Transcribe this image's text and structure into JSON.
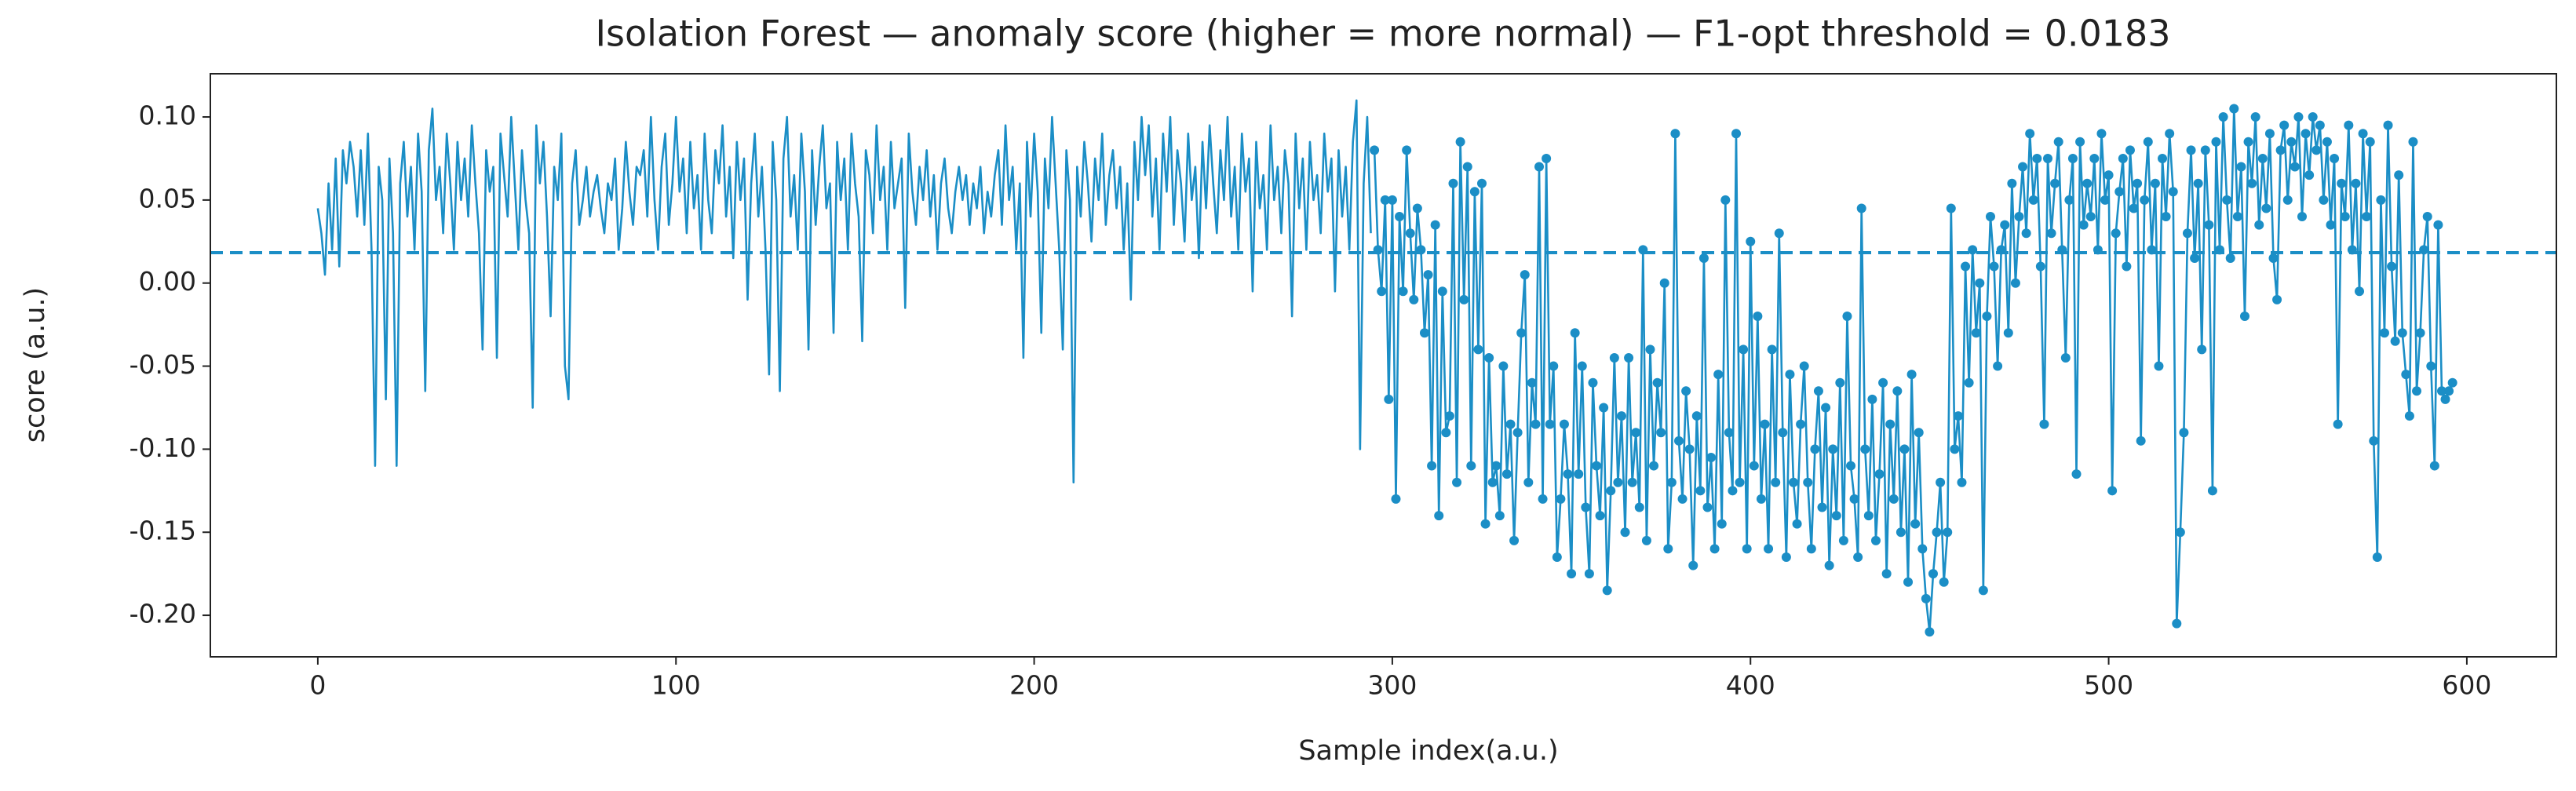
{
  "chart_data": {
    "type": "line",
    "title": "Isolation Forest — anomaly score (higher = more normal) — F1-opt threshold = 0.0183",
    "xlabel": "Sample index(a.u.)",
    "ylabel": "score (a.u.)",
    "threshold": 0.0183,
    "threshold_color": "#1b8ec6",
    "xlim": [
      -30,
      625
    ],
    "xticks": [
      0,
      100,
      200,
      300,
      400,
      500,
      600
    ],
    "ylim": [
      -0.225,
      0.126
    ],
    "yticks": [
      {
        "value": -0.2,
        "label": "-0.20"
      },
      {
        "value": -0.15,
        "label": "-0.15"
      },
      {
        "value": -0.1,
        "label": "-0.10"
      },
      {
        "value": -0.05,
        "label": "-0.05"
      },
      {
        "value": 0,
        "label": "0.00"
      },
      {
        "value": 0.05,
        "label": "0.05"
      },
      {
        "value": 0.1,
        "label": "0.10"
      }
    ],
    "series": [
      {
        "color": "#1b8ec6",
        "marker": false,
        "x": [
          0,
          1,
          2,
          3,
          4,
          5,
          6,
          7,
          8,
          9,
          10,
          11,
          12,
          13,
          14,
          15,
          16,
          17,
          18,
          19,
          20,
          21,
          22,
          23,
          24,
          25,
          26,
          27,
          28,
          29,
          30,
          31,
          32,
          33,
          34,
          35,
          36,
          37,
          38,
          39,
          40,
          41,
          42,
          43,
          44,
          45,
          46,
          47,
          48,
          49,
          50,
          51,
          52,
          53,
          54,
          55,
          56,
          57,
          58,
          59,
          60,
          61,
          62,
          63,
          64,
          65,
          66,
          67,
          68,
          69,
          70,
          71,
          72,
          73,
          74,
          75,
          76,
          77,
          78,
          79,
          80,
          81,
          82,
          83,
          84,
          85,
          86,
          87,
          88,
          89,
          90,
          91,
          92,
          93,
          94,
          95,
          96,
          97,
          98,
          99,
          100,
          101,
          102,
          103,
          104,
          105,
          106,
          107,
          108,
          109,
          110,
          111,
          112,
          113,
          114,
          115,
          116,
          117,
          118,
          119,
          120,
          121,
          122,
          123,
          124,
          125,
          126,
          127,
          128,
          129,
          130,
          131,
          132,
          133,
          134,
          135,
          136,
          137,
          138,
          139,
          140,
          141,
          142,
          143,
          144,
          145,
          146,
          147,
          148,
          149,
          150,
          151,
          152,
          153,
          154,
          155,
          156,
          157,
          158,
          159,
          160,
          161,
          162,
          163,
          164,
          165,
          166,
          167,
          168,
          169,
          170,
          171,
          172,
          173,
          174,
          175,
          176,
          177,
          178,
          179,
          180,
          181,
          182,
          183,
          184,
          185,
          186,
          187,
          188,
          189,
          190,
          191,
          192,
          193,
          194,
          195,
          196,
          197,
          198,
          199,
          200,
          201,
          202,
          203,
          204,
          205,
          206,
          207,
          208,
          209,
          210,
          211,
          212,
          213,
          214,
          215,
          216,
          217,
          218,
          219,
          220,
          221,
          222,
          223,
          224,
          225,
          226,
          227,
          228,
          229,
          230,
          231,
          232,
          233,
          234,
          235,
          236,
          237,
          238,
          239,
          240,
          241,
          242,
          243,
          244,
          245,
          246,
          247,
          248,
          249,
          250,
          251,
          252,
          253,
          254,
          255,
          256,
          257,
          258,
          259,
          260,
          261,
          262,
          263,
          264,
          265,
          266,
          267,
          268,
          269,
          270,
          271,
          272,
          273,
          274,
          275,
          276,
          277,
          278,
          279,
          280,
          281,
          282,
          283,
          284,
          285,
          286,
          287,
          288,
          289,
          290,
          291,
          292,
          293,
          294
        ],
        "values": [
          0.045,
          0.03,
          0.005,
          0.06,
          0.02,
          0.075,
          0.01,
          0.08,
          0.06,
          0.085,
          0.07,
          0.04,
          0.08,
          0.035,
          0.09,
          0.02,
          -0.11,
          0.07,
          0.05,
          -0.07,
          0.075,
          0.03,
          -0.11,
          0.06,
          0.085,
          0.04,
          0.07,
          0.02,
          0.09,
          0.055,
          -0.065,
          0.08,
          0.105,
          0.05,
          0.07,
          0.03,
          0.09,
          0.06,
          0.02,
          0.085,
          0.05,
          0.075,
          0.04,
          0.095,
          0.06,
          0.03,
          -0.04,
          0.08,
          0.055,
          0.07,
          -0.045,
          0.09,
          0.065,
          0.04,
          0.1,
          0.06,
          0.02,
          0.08,
          0.05,
          0.03,
          -0.075,
          0.095,
          0.06,
          0.085,
          0.04,
          -0.02,
          0.07,
          0.05,
          0.09,
          -0.05,
          -0.07,
          0.06,
          0.08,
          0.035,
          0.05,
          0.07,
          0.04,
          0.055,
          0.065,
          0.045,
          0.03,
          0.06,
          0.05,
          0.075,
          0.02,
          0.045,
          0.085,
          0.055,
          0.035,
          0.07,
          0.065,
          0.08,
          0.04,
          0.1,
          0.05,
          0.02,
          0.07,
          0.09,
          0.035,
          0.06,
          0.1,
          0.055,
          0.075,
          0.03,
          0.085,
          0.045,
          0.065,
          0.02,
          0.09,
          0.05,
          0.03,
          0.08,
          0.06,
          0.095,
          0.04,
          0.07,
          0.015,
          0.085,
          0.05,
          0.075,
          -0.01,
          0.06,
          0.09,
          0.04,
          0.07,
          0.02,
          -0.055,
          0.085,
          0.05,
          -0.065,
          0.075,
          0.1,
          0.04,
          0.065,
          0.02,
          0.09,
          0.055,
          -0.04,
          0.08,
          0.035,
          0.07,
          0.095,
          0.045,
          0.06,
          -0.03,
          0.085,
          0.05,
          0.075,
          0.02,
          0.09,
          0.06,
          0.04,
          -0.035,
          0.08,
          0.065,
          0.03,
          0.095,
          0.05,
          0.07,
          0.02,
          0.085,
          0.045,
          0.06,
          0.075,
          -0.015,
          0.09,
          0.055,
          0.035,
          0.07,
          0.05,
          0.08,
          0.04,
          0.065,
          0.02,
          0.06,
          0.075,
          0.045,
          0.03,
          0.055,
          0.07,
          0.05,
          0.065,
          0.035,
          0.06,
          0.045,
          0.07,
          0.03,
          0.055,
          0.04,
          0.065,
          0.08,
          0.035,
          0.095,
          0.05,
          0.07,
          0.02,
          0.06,
          -0.045,
          0.085,
          0.04,
          0.09,
          0.055,
          -0.03,
          0.075,
          0.045,
          0.1,
          0.06,
          0.02,
          -0.04,
          0.08,
          0.05,
          -0.12,
          0.07,
          0.04,
          0.085,
          0.06,
          0.025,
          0.075,
          0.05,
          0.09,
          0.035,
          0.065,
          0.08,
          0.045,
          0.07,
          0.02,
          0.06,
          -0.01,
          0.085,
          0.05,
          0.1,
          0.065,
          0.095,
          0.04,
          0.075,
          0.02,
          0.09,
          0.055,
          0.1,
          0.035,
          0.08,
          0.06,
          0.025,
          0.09,
          0.05,
          0.07,
          0.015,
          0.085,
          0.045,
          0.095,
          0.06,
          0.03,
          0.08,
          0.05,
          0.1,
          0.04,
          0.07,
          0.02,
          0.09,
          0.055,
          0.075,
          -0.005,
          0.085,
          0.045,
          0.065,
          0.02,
          0.095,
          0.05,
          0.07,
          0.03,
          0.08,
          0.06,
          -0.02,
          0.09,
          0.045,
          0.075,
          0.02,
          0.085,
          0.05,
          0.065,
          0.03,
          0.09,
          0.055,
          0.075,
          -0.005,
          0.08,
          0.04,
          0.07,
          0.02,
          0.085,
          0.11,
          -0.1,
          0.06,
          0.1,
          0.03
        ]
      },
      {
        "color": "#1b8ec6",
        "marker": true,
        "x": [
          295,
          296,
          297,
          298,
          299,
          300,
          301,
          302,
          303,
          304,
          305,
          306,
          307,
          308,
          309,
          310,
          311,
          312,
          313,
          314,
          315,
          316,
          317,
          318,
          319,
          320,
          321,
          322,
          323,
          324,
          325,
          326,
          327,
          328,
          329,
          330,
          331,
          332,
          333,
          334,
          335,
          336,
          337,
          338,
          339,
          340,
          341,
          342,
          343,
          344,
          345,
          346,
          347,
          348,
          349,
          350,
          351,
          352,
          353,
          354,
          355,
          356,
          357,
          358,
          359,
          360,
          361,
          362,
          363,
          364,
          365,
          366,
          367,
          368,
          369,
          370,
          371,
          372,
          373,
          374,
          375,
          376,
          377,
          378,
          379,
          380,
          381,
          382,
          383,
          384,
          385,
          386,
          387,
          388,
          389,
          390,
          391,
          392,
          393,
          394,
          395,
          396,
          397,
          398,
          399,
          400,
          401,
          402,
          403,
          404,
          405,
          406,
          407,
          408,
          409,
          410,
          411,
          412,
          413,
          414,
          415,
          416,
          417,
          418,
          419,
          420,
          421,
          422,
          423,
          424,
          425,
          426,
          427,
          428,
          429,
          430,
          431,
          432,
          433,
          434,
          435,
          436,
          437,
          438,
          439,
          440,
          441,
          442,
          443,
          444,
          445,
          446,
          447,
          448,
          449,
          450,
          451,
          452,
          453,
          454,
          455,
          456,
          457,
          458,
          459,
          460,
          461,
          462,
          463,
          464,
          465,
          466,
          467,
          468,
          469,
          470,
          471,
          472,
          473,
          474,
          475,
          476,
          477,
          478,
          479,
          480,
          481,
          482,
          483,
          484,
          485,
          486,
          487,
          488,
          489,
          490,
          491,
          492,
          493,
          494,
          495,
          496,
          497,
          498,
          499,
          500,
          501,
          502,
          503,
          504,
          505,
          506,
          507,
          508,
          509,
          510,
          511,
          512,
          513,
          514,
          515,
          516,
          517,
          518,
          519,
          520,
          521,
          522,
          523,
          524,
          525,
          526,
          527,
          528,
          529,
          530,
          531,
          532,
          533,
          534,
          535,
          536,
          537,
          538,
          539,
          540,
          541,
          542,
          543,
          544,
          545,
          546,
          547,
          548,
          549,
          550,
          551,
          552,
          553,
          554,
          555,
          556,
          557,
          558,
          559,
          560,
          561,
          562,
          563,
          564,
          565,
          566,
          567,
          568,
          569,
          570,
          571,
          572,
          573,
          574,
          575,
          576,
          577,
          578,
          579,
          580,
          581,
          582,
          583,
          584,
          585,
          586,
          587,
          588,
          589,
          590,
          591,
          592,
          593,
          594,
          595,
          596
        ],
        "values": [
          0.08,
          0.02,
          -0.005,
          0.05,
          -0.07,
          0.05,
          -0.13,
          0.04,
          -0.005,
          0.08,
          0.03,
          -0.01,
          0.045,
          0.02,
          -0.03,
          0.005,
          -0.11,
          0.035,
          -0.14,
          -0.005,
          -0.09,
          -0.08,
          0.06,
          -0.12,
          0.085,
          -0.01,
          0.07,
          -0.11,
          0.055,
          -0.04,
          0.06,
          -0.145,
          -0.045,
          -0.12,
          -0.11,
          -0.14,
          -0.05,
          -0.115,
          -0.085,
          -0.155,
          -0.09,
          -0.03,
          0.005,
          -0.12,
          -0.06,
          -0.085,
          0.07,
          -0.13,
          0.075,
          -0.085,
          -0.05,
          -0.165,
          -0.13,
          -0.085,
          -0.115,
          -0.175,
          -0.03,
          -0.115,
          -0.05,
          -0.135,
          -0.175,
          -0.06,
          -0.11,
          -0.14,
          -0.075,
          -0.185,
          -0.125,
          -0.045,
          -0.12,
          -0.08,
          -0.15,
          -0.045,
          -0.12,
          -0.09,
          -0.135,
          0.02,
          -0.155,
          -0.04,
          -0.11,
          -0.06,
          -0.09,
          0.0,
          -0.16,
          -0.12,
          0.09,
          -0.095,
          -0.13,
          -0.065,
          -0.1,
          -0.17,
          -0.08,
          -0.125,
          0.015,
          -0.135,
          -0.105,
          -0.16,
          -0.055,
          -0.145,
          0.05,
          -0.09,
          -0.125,
          0.09,
          -0.12,
          -0.04,
          -0.16,
          0.025,
          -0.11,
          -0.02,
          -0.13,
          -0.085,
          -0.16,
          -0.04,
          -0.12,
          0.03,
          -0.09,
          -0.165,
          -0.055,
          -0.12,
          -0.145,
          -0.085,
          -0.05,
          -0.12,
          -0.16,
          -0.1,
          -0.065,
          -0.135,
          -0.075,
          -0.17,
          -0.1,
          -0.14,
          -0.06,
          -0.155,
          -0.02,
          -0.11,
          -0.13,
          -0.165,
          0.045,
          -0.1,
          -0.14,
          -0.07,
          -0.155,
          -0.115,
          -0.06,
          -0.175,
          -0.085,
          -0.13,
          -0.065,
          -0.15,
          -0.1,
          -0.18,
          -0.055,
          -0.145,
          -0.09,
          -0.16,
          -0.19,
          -0.21,
          -0.175,
          -0.15,
          -0.12,
          -0.18,
          -0.15,
          0.045,
          -0.1,
          -0.08,
          -0.12,
          0.01,
          -0.06,
          0.02,
          -0.03,
          0.0,
          -0.185,
          -0.02,
          0.04,
          0.01,
          -0.05,
          0.02,
          0.035,
          -0.03,
          0.06,
          0.0,
          0.04,
          0.07,
          0.03,
          0.09,
          0.05,
          0.075,
          0.01,
          -0.085,
          0.075,
          0.03,
          0.06,
          0.085,
          0.02,
          -0.045,
          0.05,
          0.075,
          -0.115,
          0.085,
          0.035,
          0.06,
          0.04,
          0.075,
          0.02,
          0.09,
          0.05,
          0.065,
          -0.125,
          0.03,
          0.055,
          0.075,
          0.01,
          0.08,
          0.045,
          0.06,
          -0.095,
          0.05,
          0.085,
          0.02,
          0.06,
          -0.05,
          0.075,
          0.04,
          0.09,
          0.055,
          -0.205,
          -0.15,
          -0.09,
          0.03,
          0.08,
          0.015,
          0.06,
          -0.04,
          0.08,
          0.035,
          -0.125,
          0.085,
          0.02,
          0.1,
          0.05,
          0.015,
          0.105,
          0.04,
          0.07,
          -0.02,
          0.085,
          0.06,
          0.1,
          0.035,
          0.075,
          0.045,
          0.09,
          0.015,
          -0.01,
          0.08,
          0.095,
          0.05,
          0.085,
          0.07,
          0.1,
          0.04,
          0.09,
          0.065,
          0.1,
          0.08,
          0.095,
          0.05,
          0.085,
          0.035,
          0.075,
          -0.085,
          0.06,
          0.04,
          0.095,
          0.02,
          0.06,
          -0.005,
          0.09,
          0.04,
          0.085,
          -0.095,
          -0.165,
          0.05,
          -0.03,
          0.095,
          0.01,
          -0.035,
          0.065,
          -0.03,
          -0.055,
          -0.08,
          0.085,
          -0.065,
          -0.03,
          0.02,
          0.04,
          -0.05,
          -0.11,
          0.035,
          -0.065,
          -0.07,
          -0.065,
          -0.06
        ]
      }
    ]
  }
}
